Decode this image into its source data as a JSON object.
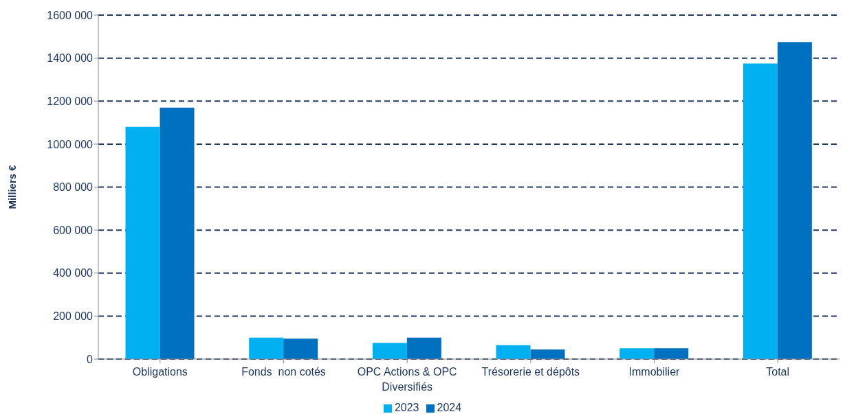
{
  "chart_data": {
    "type": "bar",
    "ylabel": "Milliers €",
    "categories": [
      "Obligations",
      "Fonds  non cotés",
      "OPC Actions & OPC Diversifiés",
      "Trésorerie et dépôts",
      "Immobilier",
      "Total"
    ],
    "series": [
      {
        "name": "2023",
        "color": "#00b0f0",
        "values": [
          1080000,
          100000,
          75000,
          65000,
          50000,
          1375000
        ]
      },
      {
        "name": "2024",
        "color": "#0070c0",
        "values": [
          1170000,
          95000,
          100000,
          45000,
          50000,
          1475000
        ]
      }
    ],
    "ylim": [
      0,
      1600000
    ],
    "yticks": [
      {
        "value": 0,
        "label": "0"
      },
      {
        "value": 200000,
        "label": "200 000"
      },
      {
        "value": 400000,
        "label": "400 000"
      },
      {
        "value": 600000,
        "label": "600 000"
      },
      {
        "value": 800000,
        "label": "800 000"
      },
      {
        "value": 1000000,
        "label": "1000 000"
      },
      {
        "value": 1200000,
        "label": "1200 000"
      },
      {
        "value": 1400000,
        "label": "1400 000"
      },
      {
        "value": 1600000,
        "label": "1600 000"
      }
    ],
    "grid": "y",
    "line_style": "dashed",
    "legend": "bottom"
  }
}
